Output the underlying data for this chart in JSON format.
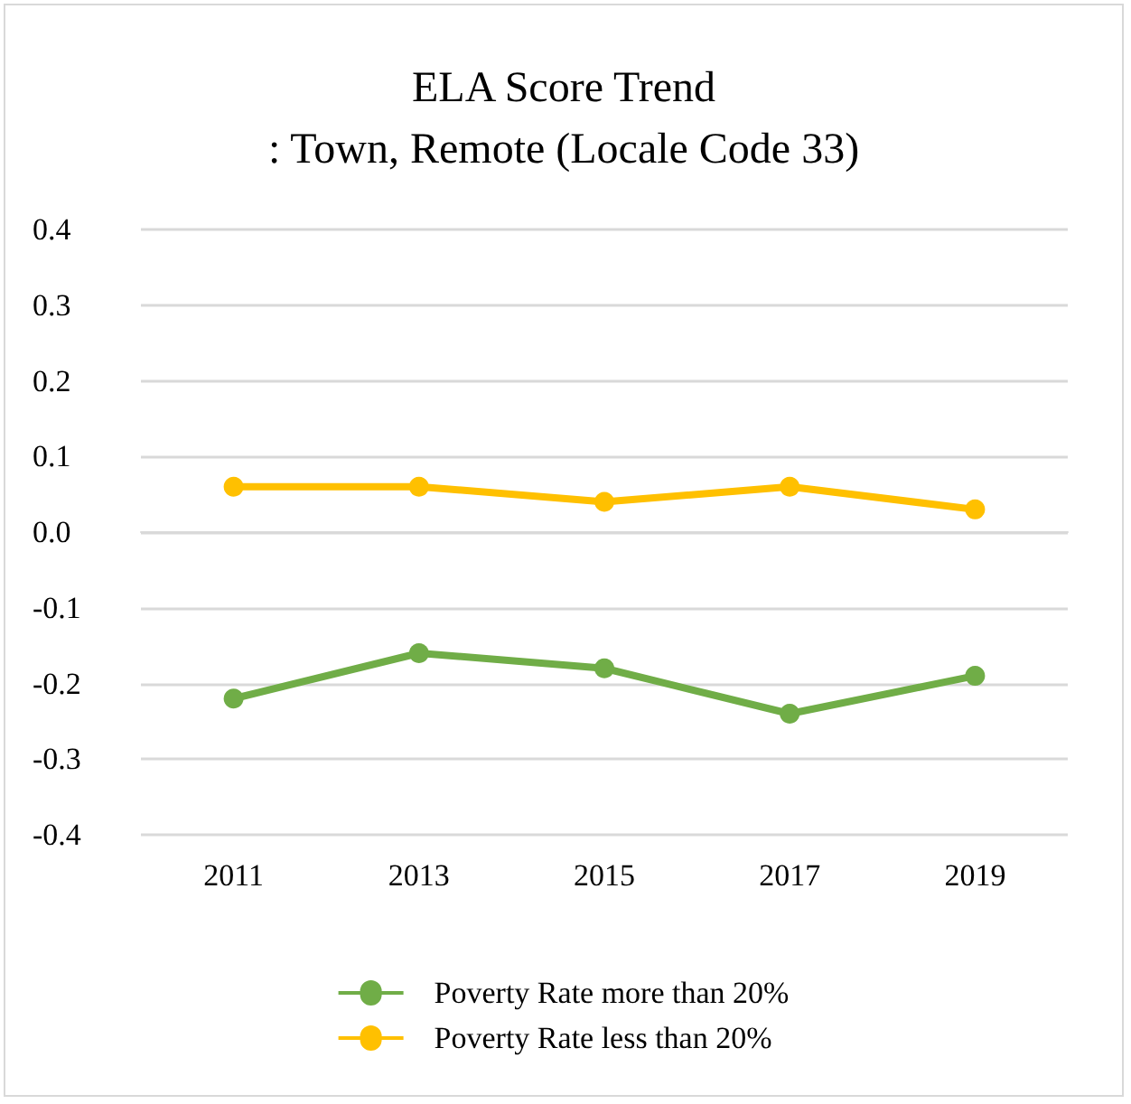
{
  "chart_data": {
    "type": "line",
    "title": "ELA Score Trend\n: Town, Remote (Locale Code 33)",
    "categories": [
      "2011",
      "2013",
      "2015",
      "2017",
      "2019"
    ],
    "series": [
      {
        "name": "Poverty Rate more than 20%",
        "color": "#70ad47",
        "values": [
          -0.22,
          -0.16,
          -0.18,
          -0.24,
          -0.19
        ]
      },
      {
        "name": "Poverty Rate less than 20%",
        "color": "#ffc000",
        "values": [
          0.06,
          0.06,
          0.04,
          0.06,
          0.03
        ]
      }
    ],
    "ylim": [
      -0.4,
      0.4
    ],
    "yticks": [
      -0.4,
      -0.3,
      -0.2,
      -0.1,
      {
        "value": 0,
        "label": "0.0"
      },
      0.1,
      0.2,
      0.3,
      0.4
    ],
    "grid": "y",
    "legend": "bottom",
    "marker": "circle",
    "line_style": "solid"
  }
}
